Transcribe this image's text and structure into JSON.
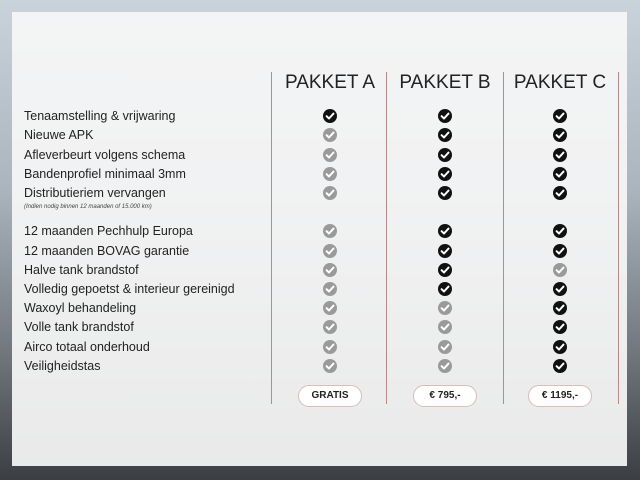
{
  "colors": {
    "check_included": "#111111",
    "check_excluded": "#9a9a9a",
    "divider": "#b88a8a"
  },
  "packages": [
    {
      "name": "PAKKET A",
      "price": "GRATIS"
    },
    {
      "name": "PAKKET B",
      "price": "€ 795,-"
    },
    {
      "name": "PAKKET C",
      "price": "€ 1195,-"
    }
  ],
  "features": [
    {
      "label": "Tenaamstelling & vrijwaring",
      "included": [
        true,
        true,
        true
      ]
    },
    {
      "label": "Nieuwe APK",
      "included": [
        false,
        true,
        true
      ]
    },
    {
      "label": "Afleverbeurt volgens schema",
      "included": [
        false,
        true,
        true
      ]
    },
    {
      "label": "Bandenprofiel minimaal 3mm",
      "included": [
        false,
        true,
        true
      ]
    },
    {
      "label": "Distributieriem vervangen",
      "included": [
        false,
        true,
        true
      ]
    },
    {
      "label": "12 maanden Pechhulp Europa",
      "included": [
        false,
        true,
        true
      ]
    },
    {
      "label": "12 maanden BOVAG garantie",
      "included": [
        false,
        true,
        true
      ]
    },
    {
      "label": "Halve tank brandstof",
      "included": [
        false,
        true,
        false
      ]
    },
    {
      "label": "Volledig gepoetst & interieur gereinigd",
      "included": [
        false,
        true,
        true
      ]
    },
    {
      "label": "Waxoyl behandeling",
      "included": [
        false,
        false,
        true
      ]
    },
    {
      "label": "Volle tank brandstof",
      "included": [
        false,
        false,
        true
      ]
    },
    {
      "label": "Airco totaal onderhoud",
      "included": [
        false,
        false,
        true
      ]
    },
    {
      "label": "Veiligheidstas",
      "included": [
        false,
        false,
        true
      ]
    }
  ],
  "note": "(Indien nodig binnen 12 maanden of 15.000 km)"
}
